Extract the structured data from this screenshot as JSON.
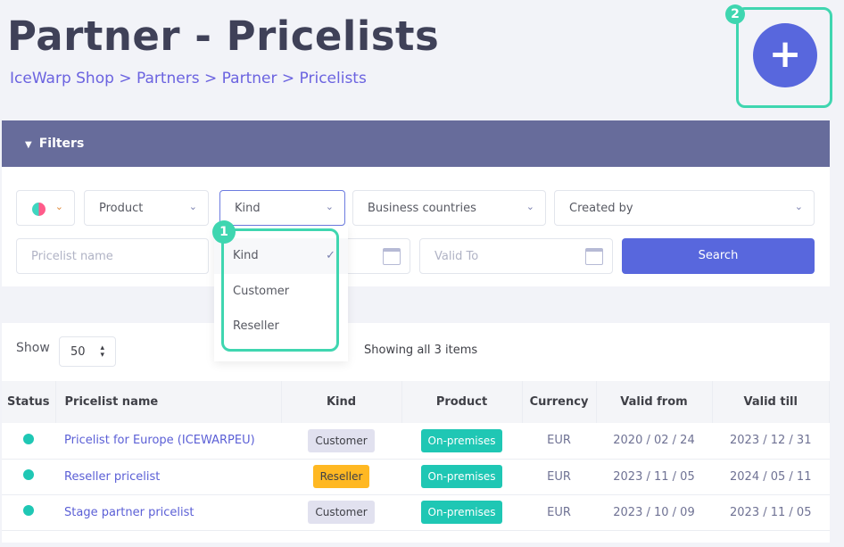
{
  "header": {
    "title": "Partner - Pricelists",
    "breadcrumb": [
      "IceWarp Shop",
      "Partners",
      "Partner",
      "Pricelists"
    ],
    "separator": ">",
    "add_label": "+"
  },
  "annotations": {
    "one": "1",
    "two": "2"
  },
  "filters": {
    "title": "Filters",
    "product": "Product",
    "kind": "Kind",
    "business_countries": "Business countries",
    "created_by": "Created by",
    "pricelist_name_placeholder": "Pricelist name",
    "valid_to_placeholder": "Valid To",
    "search": "Search"
  },
  "kind_dropdown": {
    "options": [
      "Kind",
      "Customer",
      "Reseller"
    ],
    "selected": "Kind"
  },
  "list": {
    "show_label": "Show",
    "page_size": "50",
    "summary": "Showing all 3 items"
  },
  "table": {
    "columns": [
      "Status",
      "Pricelist name",
      "Kind",
      "Product",
      "Currency",
      "Valid from",
      "Valid till"
    ],
    "rows": [
      {
        "name": "Pricelist for Europe (ICEWARPEU)",
        "kind": "Customer",
        "product": "On-premises",
        "currency": "EUR",
        "valid_from": "2020 / 02 / 24",
        "valid_till": "2023 / 12 / 31"
      },
      {
        "name": "Reseller pricelist",
        "kind": "Reseller",
        "product": "On-premises",
        "currency": "EUR",
        "valid_from": "2023 / 11 / 05",
        "valid_till": "2024 / 05 / 11"
      },
      {
        "name": "Stage partner pricelist",
        "kind": "Customer",
        "product": "On-premises",
        "currency": "EUR",
        "valid_from": "2023 / 10 / 09",
        "valid_till": "2023 / 11 / 05"
      }
    ]
  },
  "colors": {
    "accent": "#5867dd",
    "teal": "#1fc7b4",
    "reseller": "#ffb822",
    "customer": "#e1e1ef",
    "highlight": "#3fd6b0"
  }
}
